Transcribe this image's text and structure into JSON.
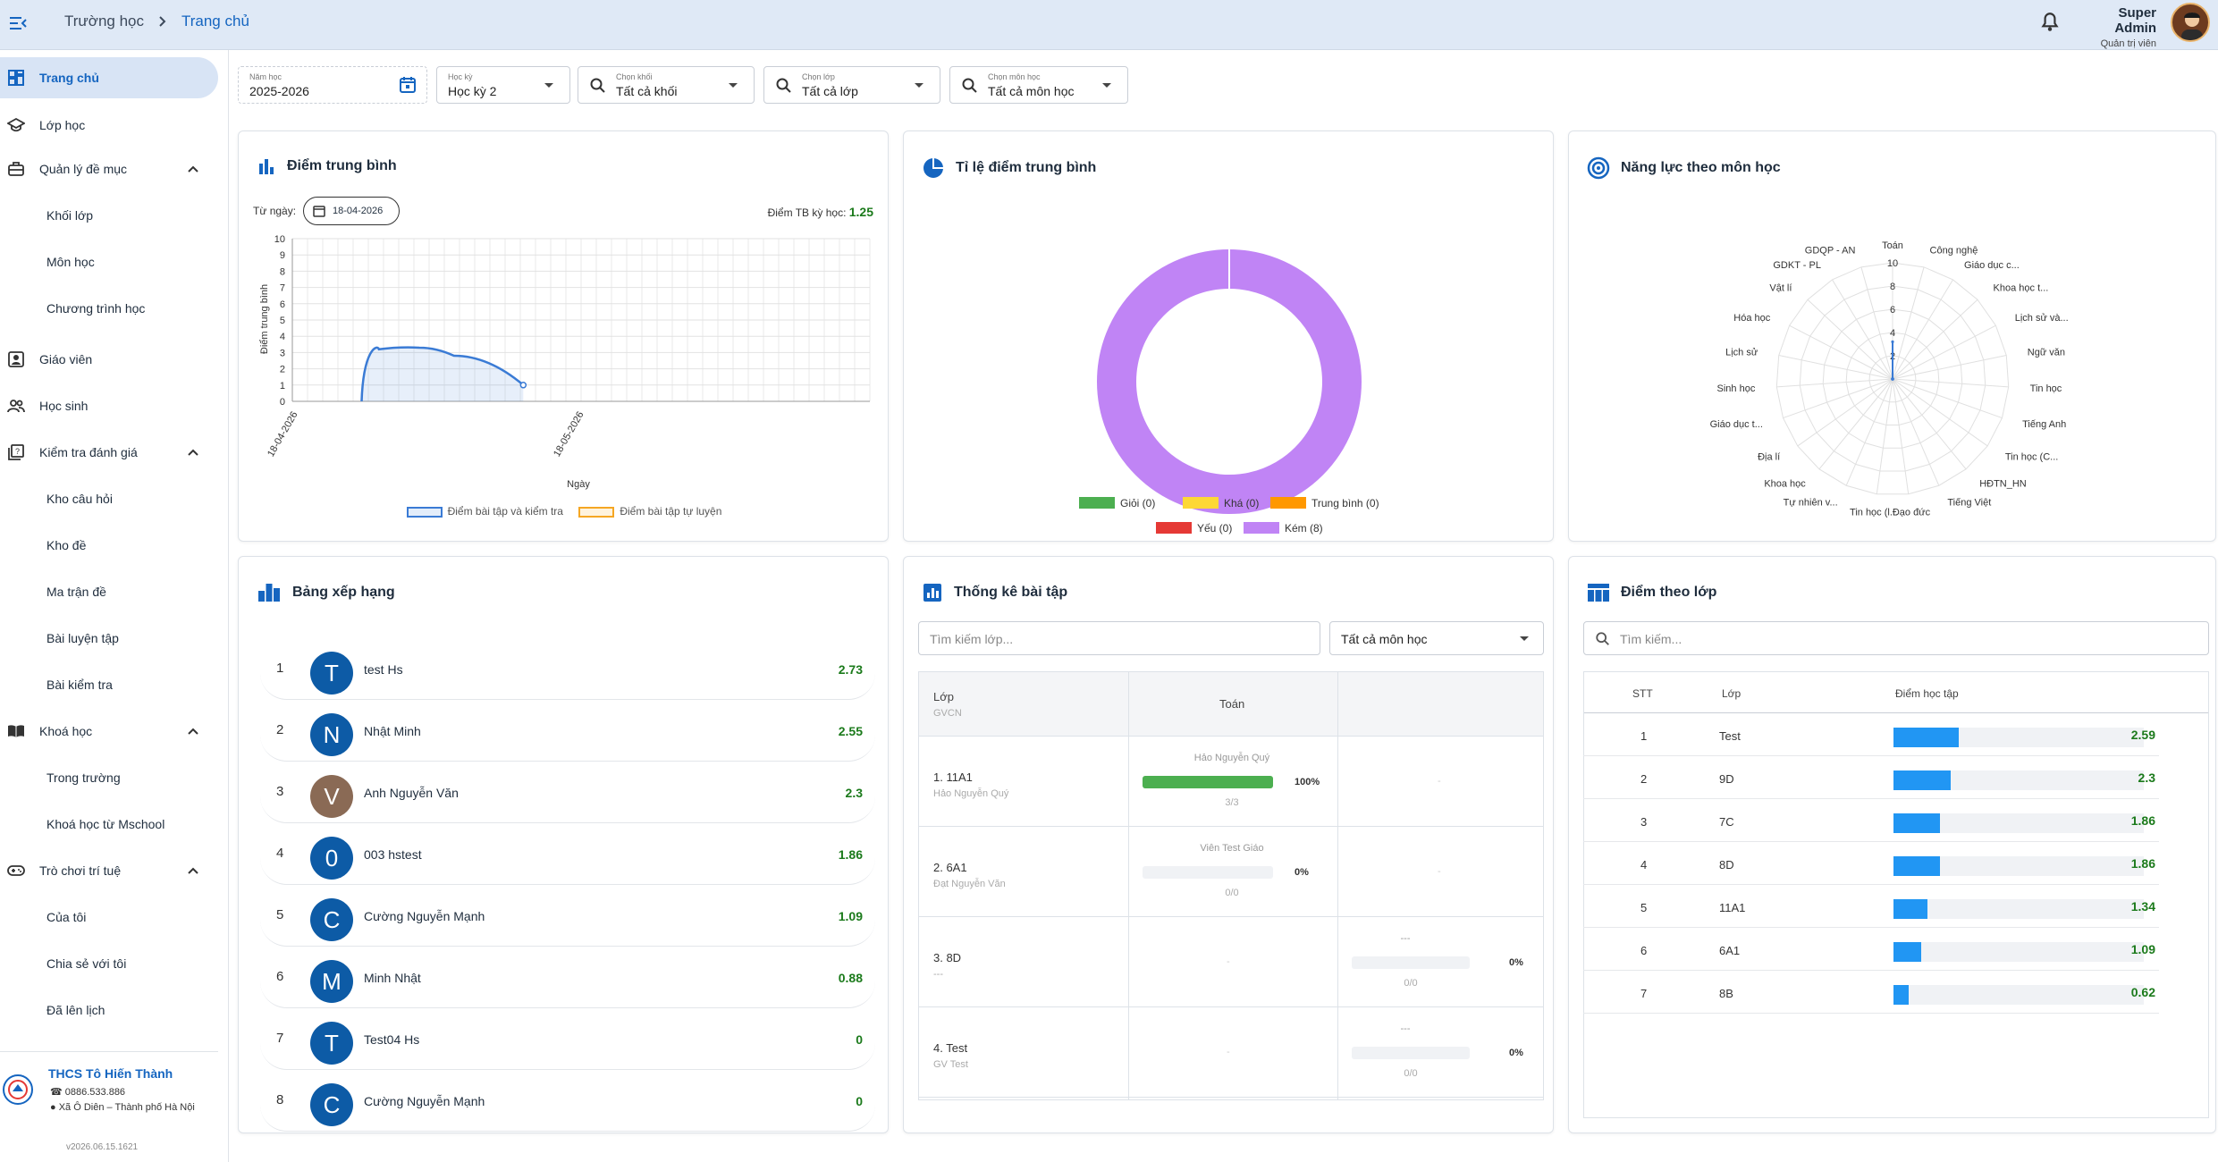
{
  "header": {
    "crumbs": [
      "Trường học",
      "Trang chủ"
    ],
    "user_name": "Super Admin",
    "user_role": "Quản trị viên"
  },
  "sidebar": {
    "items": [
      {
        "label": "Trang chủ",
        "icon": "dashboard-icon",
        "active": true
      },
      {
        "label": "Lớp học",
        "icon": "school-icon"
      },
      {
        "label": "Quản lý đề mục",
        "icon": "briefcase-icon",
        "expanded": true
      },
      {
        "label": "Khối lớp",
        "sub": true
      },
      {
        "label": "Môn học",
        "sub": true
      },
      {
        "label": "Chương trình học",
        "sub": true
      },
      {
        "label": "Giáo viên",
        "icon": "teacher-icon"
      },
      {
        "label": "Học sinh",
        "icon": "students-icon"
      },
      {
        "label": "Kiểm tra đánh giá",
        "icon": "quiz-icon",
        "expanded": true
      },
      {
        "label": "Kho câu hỏi",
        "sub": true
      },
      {
        "label": "Kho đề",
        "sub": true
      },
      {
        "label": "Ma trận đề",
        "sub": true
      },
      {
        "label": "Bài luyện tập",
        "sub": true
      },
      {
        "label": "Bài kiểm tra",
        "sub": true
      },
      {
        "label": "Khoá học",
        "icon": "book-icon",
        "expanded": true
      },
      {
        "label": "Trong trường",
        "sub": true
      },
      {
        "label": "Khoá học từ Mschool",
        "sub": true
      },
      {
        "label": "Trò chơi trí tuệ",
        "icon": "gamepad-icon",
        "expanded": true
      },
      {
        "label": "Của tôi",
        "sub": true
      },
      {
        "label": "Chia sẻ với tôi",
        "sub": true
      },
      {
        "label": "Đã lên lịch",
        "sub": true
      }
    ],
    "school": {
      "name": "THCS Tô Hiến Thành",
      "phone": "0886.533.886",
      "address": "Xã Ô Diên – Thành phố Hà Nội"
    },
    "version": "v2026.06.15.1621"
  },
  "filters": [
    {
      "title": "Năm học",
      "value": "2025-2026"
    },
    {
      "title": "Học kỳ",
      "value": "Học kỳ 2"
    },
    {
      "title": "Chọn khối",
      "value": "Tất cả khối"
    },
    {
      "title": "Chọn lớp",
      "value": "Tất cả lớp"
    },
    {
      "title": "Chọn môn học",
      "value": "Tất cả môn học"
    }
  ],
  "avg_card": {
    "title": "Điểm trung bình",
    "from_label": "Từ ngày:",
    "from_date": "18-04-2026",
    "term_label": "Điểm TB kỳ học:",
    "term_value": "1.25",
    "legend": [
      "Điểm bài tập và kiểm tra",
      "Điểm bài tập tự luyện"
    ]
  },
  "ratio_card": {
    "title": "Tỉ lệ điểm trung bình"
  },
  "radar_card": {
    "title": "Năng lực theo môn học"
  },
  "chart_data": [
    {
      "type": "line",
      "title": "",
      "xlabel": "Ngày",
      "ylabel": "Điểm trung bình",
      "ylim": [
        0,
        10
      ],
      "yticks": [
        0,
        1,
        2,
        3,
        4,
        5,
        6,
        7,
        8,
        9,
        10
      ],
      "xticks": [
        "18-04-2026",
        "18-05-2026"
      ],
      "series": [
        {
          "name": "Điểm bài tập và kiểm tra",
          "color": "#3a7bd5",
          "points": [
            [
              0.12,
              0
            ],
            [
              0.15,
              3.2
            ],
            [
              0.22,
              3.3
            ],
            [
              0.28,
              2.8
            ],
            [
              0.4,
              1
            ]
          ]
        },
        {
          "name": "Điểm bài tập tự luyện",
          "color": "#f5a623",
          "points": []
        }
      ],
      "grid": true,
      "legend": "bottom"
    },
    {
      "type": "pie",
      "title": "",
      "slices": [
        {
          "label": "Giỏi (0)",
          "value": 0,
          "color": "#4caf50"
        },
        {
          "label": "Khá (0)",
          "value": 0,
          "color": "#fdd835"
        },
        {
          "label": "Trung bình (0)",
          "value": 0,
          "color": "#ff9800"
        },
        {
          "label": "Yếu (0)",
          "value": 0,
          "color": "#e53935"
        },
        {
          "label": "Kém (8)",
          "value": 8,
          "color": "#c084f5"
        }
      ],
      "legend": "bottom"
    },
    {
      "type": "radar",
      "title": "",
      "rlim": [
        0,
        10
      ],
      "rticks": [
        2,
        4,
        6,
        8,
        10
      ],
      "axes": [
        "Toán",
        "Công nghệ",
        "Giáo dục c...",
        "Khoa học t...",
        "Lịch sử và...",
        "Ngữ văn",
        "Tin học",
        "Tiếng Anh",
        "Tin học (C...",
        "HĐTN_HN",
        "Tiếng Việt",
        "Đạo đức",
        "Tin học (l...",
        "Tự nhiên v...",
        "Khoa học",
        "Địa lí",
        "Giáo dục t...",
        "Sinh học",
        "Lịch sử",
        "Hóa học",
        "Vật lí",
        "GDKT - PL",
        "GDQP - AN"
      ],
      "values": [
        3.2,
        0,
        0,
        0,
        0,
        0,
        0,
        0,
        0,
        0,
        0,
        0,
        0,
        0,
        0,
        0,
        0,
        0,
        0,
        0,
        0,
        0,
        0
      ]
    }
  ],
  "ranking": {
    "title": "Bảng xếp hạng",
    "rows": [
      {
        "rank": "1",
        "initial": "T",
        "name": "test Hs",
        "score": "2.73"
      },
      {
        "rank": "2",
        "initial": "N",
        "name": "Nhật Minh",
        "score": "2.55"
      },
      {
        "rank": "3",
        "initial": "V",
        "name": "Anh Nguyễn Văn",
        "score": "2.3",
        "photo": true
      },
      {
        "rank": "4",
        "initial": "0",
        "name": "003 hstest",
        "score": "1.86"
      },
      {
        "rank": "5",
        "initial": "C",
        "name": "Cường Nguyễn Mạnh",
        "score": "1.09"
      },
      {
        "rank": "6",
        "initial": "M",
        "name": "Minh Nhật",
        "score": "0.88"
      },
      {
        "rank": "7",
        "initial": "T",
        "name": "Test04 Hs",
        "score": "0"
      },
      {
        "rank": "8",
        "initial": "C",
        "name": "Cường Nguyễn Mạnh",
        "score": "0"
      }
    ]
  },
  "exercise": {
    "title": "Thống kê bài tập",
    "search_placeholder": "Tìm kiếm lớp...",
    "subject_select": "Tất cả môn học",
    "col_class": "Lớp",
    "col_teacher": "GVCN",
    "col_subject": "Toán",
    "rows": [
      {
        "cls": "1. 11A1",
        "gvcn": "Hảo Nguyễn Quý",
        "teacher": "Hảo Nguyễn Quý",
        "pct": "100%",
        "pct_val": 100,
        "ratio": "3/3",
        "col3": "-"
      },
      {
        "cls": "2. 6A1",
        "gvcn": "Đạt Nguyễn Văn",
        "teacher": "Viên Test Giáo",
        "pct": "0%",
        "pct_val": 0,
        "ratio": "0/0",
        "col3": "-"
      },
      {
        "cls": "3. 8D",
        "gvcn": "---",
        "teacher": "",
        "pct": "",
        "pct_val": null,
        "ratio": "",
        "col3": "---",
        "col3_pct": "0%",
        "col3_ratio": "0/0"
      },
      {
        "cls": "4. Test",
        "gvcn": "GV Test",
        "teacher": "",
        "pct": "",
        "pct_val": null,
        "ratio": "",
        "col3": "---",
        "col3_pct": "0%",
        "col3_ratio": "0/0"
      }
    ]
  },
  "class_scores": {
    "title": "Điểm theo lớp",
    "search_placeholder": "Tìm kiếm...",
    "col_stt": "STT",
    "col_class": "Lớp",
    "col_score": "Điểm học tập",
    "max": 10,
    "rows": [
      {
        "stt": "1",
        "cls": "Test",
        "score": "2.59",
        "val": 2.59
      },
      {
        "stt": "2",
        "cls": "9D",
        "score": "2.3",
        "val": 2.3
      },
      {
        "stt": "3",
        "cls": "7C",
        "score": "1.86",
        "val": 1.86
      },
      {
        "stt": "4",
        "cls": "8D",
        "score": "1.86",
        "val": 1.86
      },
      {
        "stt": "5",
        "cls": "11A1",
        "score": "1.34",
        "val": 1.34
      },
      {
        "stt": "6",
        "cls": "6A1",
        "score": "1.09",
        "val": 1.09
      },
      {
        "stt": "7",
        "cls": "8B",
        "score": "0.62",
        "val": 0.62
      }
    ]
  }
}
